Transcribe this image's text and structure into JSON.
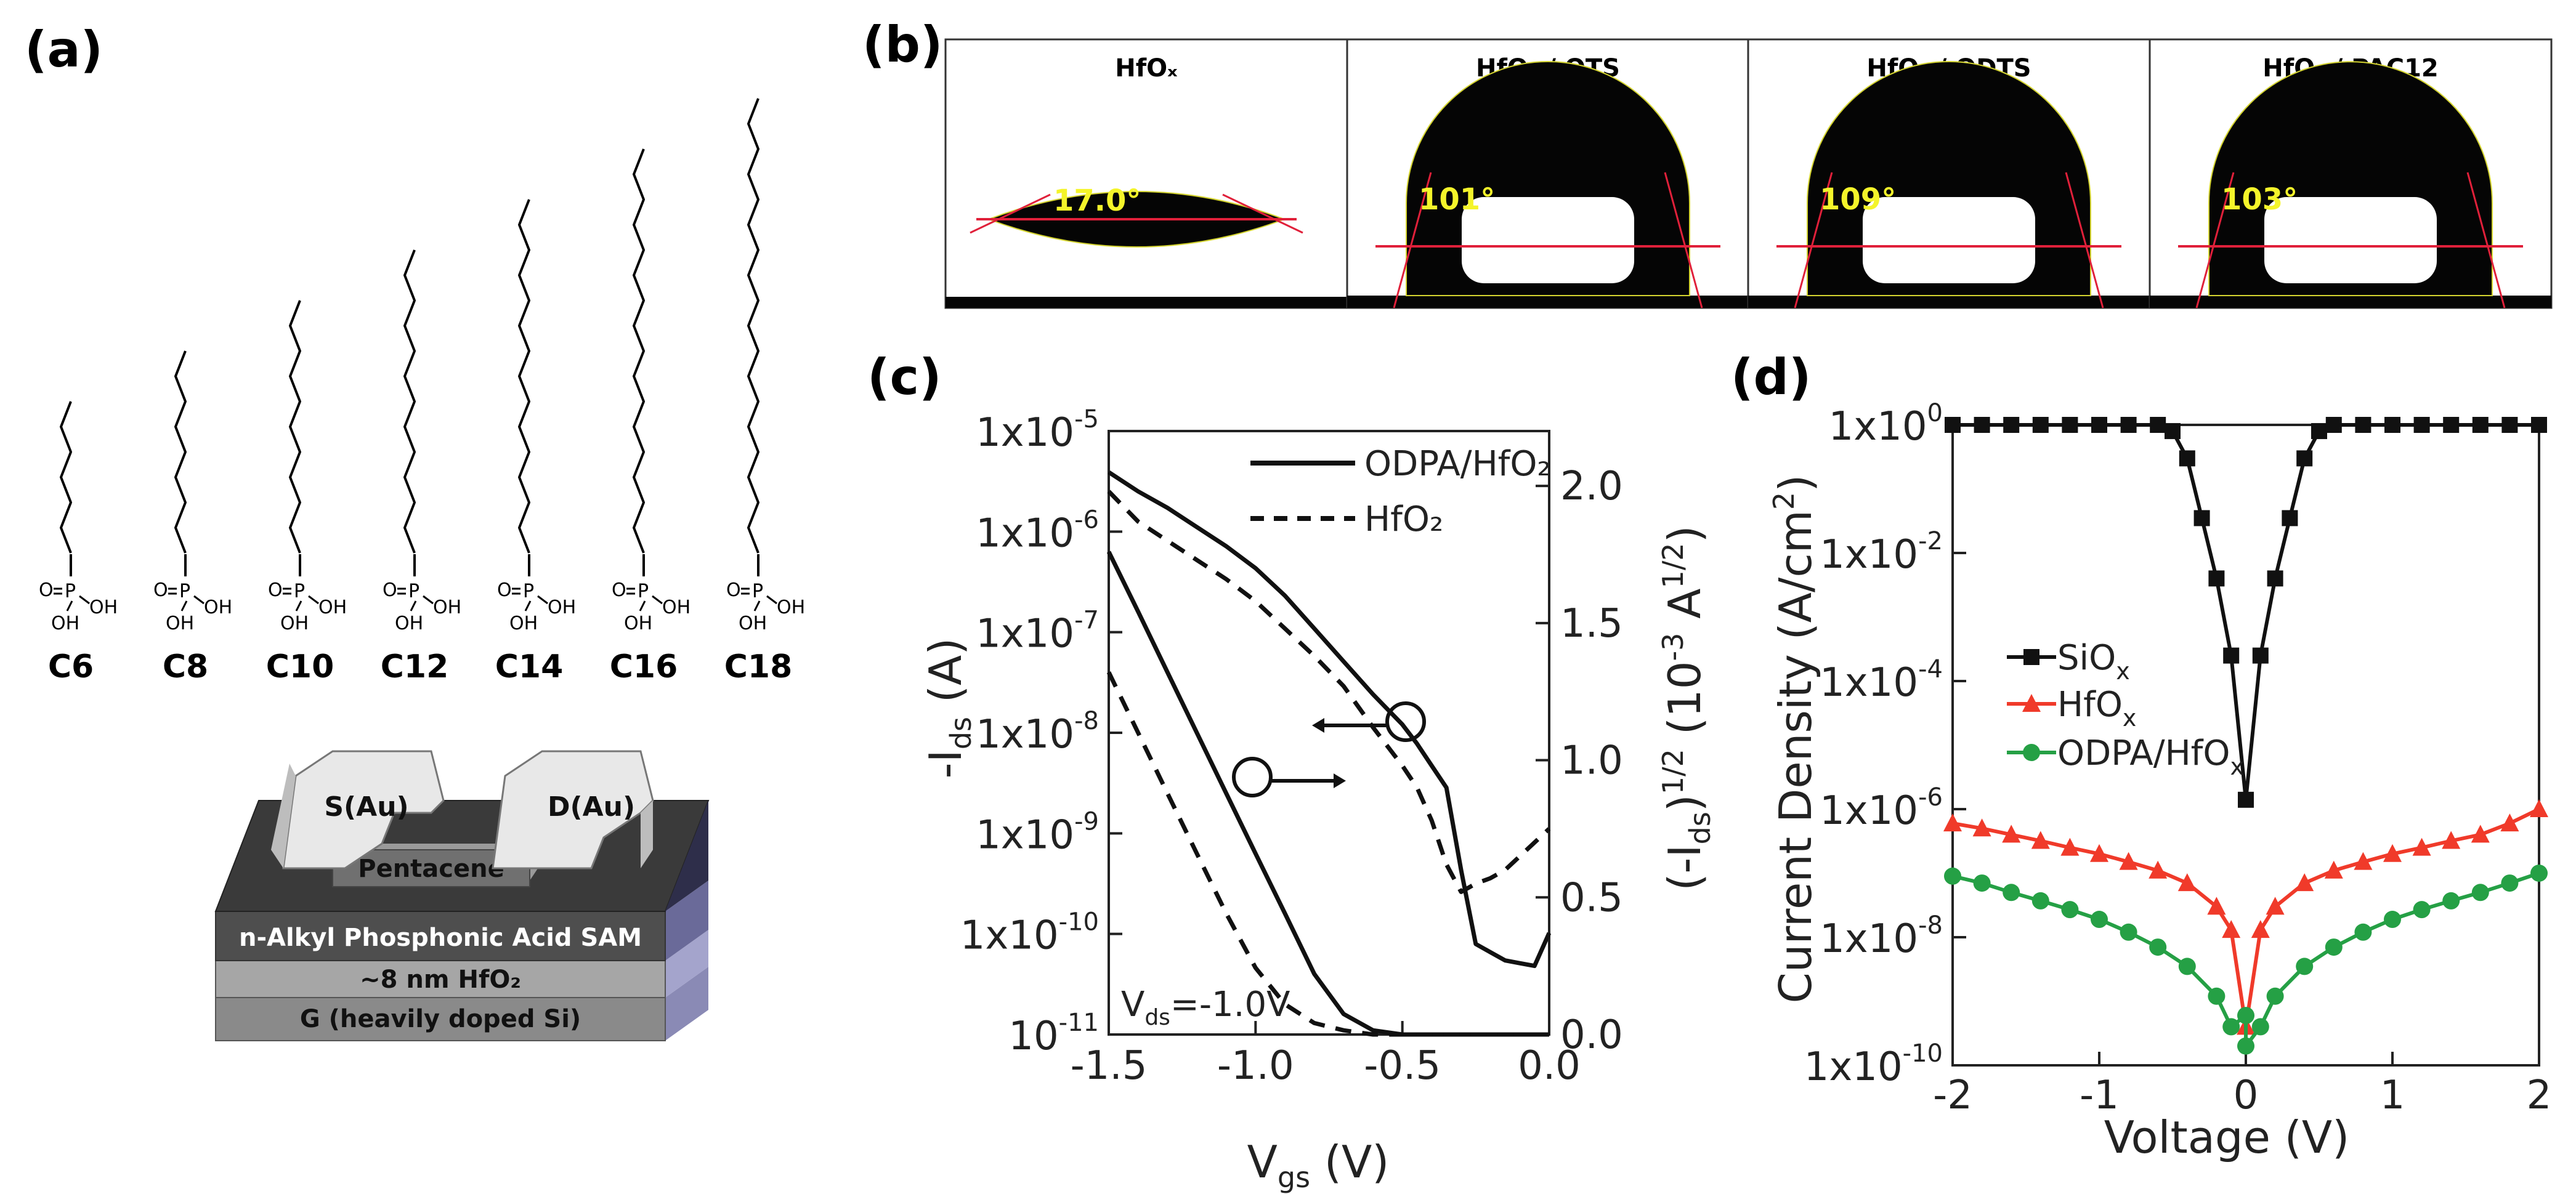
{
  "panels": {
    "a": "(a)",
    "b": "(b)",
    "c": "(c)",
    "d": "(d)"
  },
  "panel_a": {
    "molecules": [
      {
        "label": "C6",
        "carbons": 6
      },
      {
        "label": "C8",
        "carbons": 8
      },
      {
        "label": "C10",
        "carbons": 10
      },
      {
        "label": "C12",
        "carbons": 12
      },
      {
        "label": "C14",
        "carbons": 14
      },
      {
        "label": "C16",
        "carbons": 16
      },
      {
        "label": "C18",
        "carbons": 18
      }
    ],
    "head_group": {
      "o": "O",
      "p": "P",
      "oh": "OH"
    },
    "device_layers": {
      "source": "S(Au)",
      "drain": "D(Au)",
      "semiconductor": "Pentacene",
      "sam": "n-Alkyl Phosphonic Acid SAM",
      "dielectric": "~8 nm HfO₂",
      "gate": "G (heavily doped Si)"
    },
    "colors": {
      "gold": "#e6e6e6",
      "pentacene": "#7a7a7a",
      "sam": "#555555",
      "hfo2": "#9a9a9a",
      "gate": "#8a8a8a",
      "side": "#8f8fbf"
    }
  },
  "panel_b": {
    "images": [
      {
        "title": "HfOₓ",
        "angle": "17.0°"
      },
      {
        "title": "HfOₓ / OTS",
        "angle": "101°"
      },
      {
        "title": "HfOₓ / ODTS",
        "angle": "109°"
      },
      {
        "title": "HfOₓ / PAC12",
        "angle": "103°"
      }
    ],
    "colors": {
      "drop": "#050505",
      "baseline": "#e0203a",
      "angle_text": "#f4f42a"
    }
  },
  "chart_data": [
    {
      "panel": "c",
      "type": "line",
      "x": [
        -1.5,
        -1.4,
        -1.3,
        -1.2,
        -1.1,
        -1.0,
        -0.9,
        -0.8,
        -0.7,
        -0.6,
        -0.5,
        -0.45,
        -0.4,
        -0.35,
        -0.3,
        -0.25,
        -0.2,
        -0.15,
        -0.1,
        -0.05,
        0.0
      ],
      "series": [
        {
          "name": "ODPA/HfO₂",
          "style": "solid",
          "axis": "left",
          "values": [
            6.3e-07,
            1.6e-07,
            4e-08,
            1e-08,
            2.5e-09,
            6.3e-10,
            1.6e-10,
            4e-11,
            1.6e-11,
            1.1e-11,
            1e-11,
            1e-11,
            1e-11,
            1e-11,
            1e-11,
            1e-11,
            1e-11,
            1e-11,
            1e-11,
            1e-11,
            1e-11
          ]
        },
        {
          "name": "HfO₂",
          "style": "dashed",
          "axis": "left",
          "values": [
            4e-08,
            1e-08,
            2.5e-09,
            6.3e-10,
            1.6e-10,
            4.6e-11,
            2e-11,
            1.3e-11,
            1.1e-11,
            1e-11,
            1e-11,
            1e-11,
            1e-11,
            1e-11,
            1e-11,
            1e-11,
            1e-11,
            1e-11,
            1e-11,
            1e-11,
            1e-11
          ]
        },
        {
          "name": "ODPA/HfO₂ sqrt",
          "style": "solid",
          "axis": "right",
          "values": [
            2.05,
            1.98,
            1.92,
            1.85,
            1.78,
            1.7,
            1.6,
            1.48,
            1.36,
            1.24,
            1.13,
            1.06,
            0.98,
            0.9,
            0.6,
            0.33,
            0.3,
            0.27,
            0.26,
            0.25,
            0.37
          ]
        },
        {
          "name": "HfO₂ sqrt",
          "style": "dashed",
          "axis": "right",
          "values": [
            1.98,
            1.87,
            1.8,
            1.73,
            1.66,
            1.58,
            1.48,
            1.38,
            1.27,
            1.12,
            0.98,
            0.9,
            0.78,
            0.62,
            0.52,
            0.55,
            0.57,
            0.6,
            0.65,
            0.7,
            0.75
          ]
        }
      ],
      "xlabel": "V",
      "xlabel_sub": "gs",
      "xlabel_unit": " (V)",
      "ylabel": "-I",
      "ylabel_sub": "ds",
      "ylabel_unit": " (A)",
      "y2label": "(-I",
      "y2label_sub": "ds",
      "y2label_mid": ")",
      "y2label_sup": "1/2",
      "y2label_unit": " (10",
      "y2label_exp": "-3",
      "y2label_end": " A",
      "y2label_end_sup": "1/2",
      "y2label_close": ")",
      "xlim": [
        -1.5,
        0.0
      ],
      "ylim_log": [
        -11,
        -5
      ],
      "y2lim": [
        0.0,
        2.2
      ],
      "xticks": [
        "-1.5",
        "-1.0",
        "-0.5",
        "0.0"
      ],
      "yticks": [
        "1x10",
        "1x10",
        "1x10",
        "1x10",
        "1x10",
        "1x10",
        "10"
      ],
      "yticks_exp": [
        "-5",
        "-6",
        "-7",
        "-8",
        "-9",
        "-10",
        "-11"
      ],
      "y2ticks": [
        "2.0",
        "1.5",
        "1.0",
        "0.5",
        "0.0"
      ],
      "annotation": {
        "text": "V",
        "sub": "ds",
        "value": "=-1.0V"
      },
      "legend_position": "top-right",
      "colors": {
        "line": "#111111"
      }
    },
    {
      "panel": "d",
      "type": "line",
      "xlim": [
        -2,
        2
      ],
      "ylim_log": [
        -10,
        0
      ],
      "xticks": [
        "-2",
        "-1",
        "0",
        "1",
        "2"
      ],
      "yticks": [
        "1x10",
        "1x10",
        "1x10",
        "1x10",
        "1x10",
        "1x10"
      ],
      "yticks_exp": [
        "0",
        "-2",
        "-4",
        "-6",
        "-8",
        "-10"
      ],
      "xlabel": "Voltage (V)",
      "ylabel": "Current Density (A/cm",
      "ylabel_sup": "2",
      "ylabel_close": ")",
      "legend_position": "center-left",
      "series": [
        {
          "name": "SiO",
          "name_sub": "x",
          "color": "#111111",
          "marker": "square",
          "points": [
            [
              -2,
              1.0
            ],
            [
              -1.8,
              1.0
            ],
            [
              -1.6,
              1.0
            ],
            [
              -1.4,
              1.0
            ],
            [
              -1.2,
              1.0
            ],
            [
              -1.0,
              1.0
            ],
            [
              -0.8,
              1.0
            ],
            [
              -0.6,
              1.0
            ],
            [
              -0.5,
              0.8
            ],
            [
              -0.4,
              0.3
            ],
            [
              -0.3,
              0.035
            ],
            [
              -0.2,
              0.004
            ],
            [
              -0.1,
              0.00025
            ],
            [
              0.0,
              1.4e-06
            ],
            [
              0.1,
              0.00025
            ],
            [
              0.2,
              0.004
            ],
            [
              0.3,
              0.035
            ],
            [
              0.4,
              0.3
            ],
            [
              0.5,
              0.8
            ],
            [
              0.6,
              1.0
            ],
            [
              0.8,
              1.0
            ],
            [
              1.0,
              1.0
            ],
            [
              1.2,
              1.0
            ],
            [
              1.4,
              1.0
            ],
            [
              1.6,
              1.0
            ],
            [
              1.8,
              1.0
            ],
            [
              2.0,
              1.0
            ]
          ]
        },
        {
          "name": "HfO",
          "name_sub": "x",
          "color": "#f03a2a",
          "marker": "triangle",
          "points": [
            [
              -2,
              6e-07
            ],
            [
              -1.8,
              5e-07
            ],
            [
              -1.6,
              4e-07
            ],
            [
              -1.4,
              3.2e-07
            ],
            [
              -1.2,
              2.5e-07
            ],
            [
              -1.0,
              2e-07
            ],
            [
              -0.8,
              1.5e-07
            ],
            [
              -0.6,
              1.1e-07
            ],
            [
              -0.4,
              7e-08
            ],
            [
              -0.2,
              3e-08
            ],
            [
              -0.1,
              1.3e-08
            ],
            [
              0.0,
              4e-10
            ],
            [
              0.1,
              1.3e-08
            ],
            [
              0.2,
              3e-08
            ],
            [
              0.4,
              7e-08
            ],
            [
              0.6,
              1.1e-07
            ],
            [
              0.8,
              1.5e-07
            ],
            [
              1.0,
              2e-07
            ],
            [
              1.2,
              2.5e-07
            ],
            [
              1.4,
              3.2e-07
            ],
            [
              1.6,
              4e-07
            ],
            [
              1.8,
              6e-07
            ],
            [
              2.0,
              1e-06
            ]
          ]
        },
        {
          "name": "ODPA/HfO",
          "name_sub": "x",
          "color": "#25a045",
          "marker": "circle",
          "points": [
            [
              -2,
              9e-08
            ],
            [
              -1.8,
              7e-08
            ],
            [
              -1.6,
              5e-08
            ],
            [
              -1.4,
              3.7e-08
            ],
            [
              -1.2,
              2.7e-08
            ],
            [
              -1.0,
              1.9e-08
            ],
            [
              -0.8,
              1.2e-08
            ],
            [
              -0.6,
              7e-09
            ],
            [
              -0.4,
              3.5e-09
            ],
            [
              -0.2,
              1.2e-09
            ],
            [
              -0.1,
              4e-10
            ],
            [
              0.0,
              6e-10
            ],
            [
              0.0,
              2e-10
            ],
            [
              0.1,
              4e-10
            ],
            [
              0.2,
              1.2e-09
            ],
            [
              0.4,
              3.5e-09
            ],
            [
              0.6,
              7e-09
            ],
            [
              0.8,
              1.2e-08
            ],
            [
              1.0,
              1.9e-08
            ],
            [
              1.2,
              2.7e-08
            ],
            [
              1.4,
              3.7e-08
            ],
            [
              1.6,
              5e-08
            ],
            [
              1.8,
              7e-08
            ],
            [
              2.0,
              1e-07
            ]
          ]
        }
      ]
    }
  ]
}
